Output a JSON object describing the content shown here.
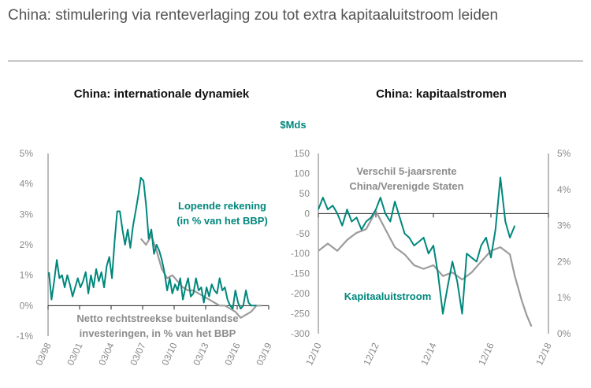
{
  "title": "China: stimulering via renteverlaging zou tot extra kapitaaluitstroom leiden",
  "colors": {
    "teal": "#00877c",
    "grey": "#9b9b9b"
  },
  "chart_data": [
    {
      "type": "line",
      "title": "China: internationale dynamiek",
      "x_ticks": [
        "03/98",
        "03/01",
        "03/04",
        "03/07",
        "03/10",
        "03/13",
        "03/16",
        "03/19"
      ],
      "x_range": [
        1998.17,
        2019.17
      ],
      "y_ticks": [
        "5%",
        "4%",
        "3%",
        "2%",
        "1%",
        "0%",
        "-1%"
      ],
      "ylim": [
        -1,
        5
      ],
      "series": [
        {
          "name": "Lopende rekening (in % van het BBP)",
          "label_lines": [
            "Lopende rekening",
            "(in % van het BBP)"
          ],
          "color": "#00877c",
          "x": [
            1998.25,
            1998.5,
            1998.75,
            1999.0,
            1999.25,
            1999.5,
            1999.75,
            2000.0,
            2000.25,
            2000.5,
            2000.75,
            2001.0,
            2001.25,
            2001.5,
            2001.75,
            2002.0,
            2002.25,
            2002.5,
            2002.75,
            2003.0,
            2003.25,
            2003.5,
            2003.75,
            2004.0,
            2004.25,
            2004.5,
            2004.75,
            2005.0,
            2005.25,
            2005.5,
            2005.75,
            2006.0,
            2006.25,
            2006.5,
            2006.75,
            2007.0,
            2007.25,
            2007.5,
            2007.75,
            2008.0,
            2008.25,
            2008.5,
            2008.75,
            2009.0,
            2009.25,
            2009.5,
            2009.75,
            2010.0,
            2010.25,
            2010.5,
            2010.75,
            2011.0,
            2011.25,
            2011.5,
            2011.75,
            2012.0,
            2012.25,
            2012.5,
            2012.75,
            2013.0,
            2013.25,
            2013.5,
            2013.75,
            2014.0,
            2014.25,
            2014.5,
            2014.75,
            2015.0,
            2015.25,
            2015.5,
            2015.75,
            2016.0,
            2016.25,
            2016.5,
            2016.75,
            2017.0,
            2017.25,
            2017.5,
            2017.75,
            2018.0
          ],
          "y": [
            1.1,
            0.2,
            0.8,
            1.5,
            0.9,
            1.0,
            0.6,
            1.0,
            0.7,
            0.3,
            0.6,
            0.9,
            0.6,
            0.8,
            1.1,
            0.4,
            1.0,
            0.6,
            1.2,
            0.8,
            1.1,
            0.6,
            1.3,
            1.6,
            0.9,
            2.1,
            3.1,
            3.1,
            2.5,
            2.0,
            2.5,
            1.9,
            2.6,
            3.1,
            3.6,
            4.2,
            4.1,
            3.3,
            2.2,
            2.5,
            1.7,
            2.0,
            1.8,
            1.5,
            1.1,
            0.5,
            0.9,
            0.4,
            0.7,
            0.5,
            0.9,
            0.2,
            0.6,
            0.9,
            0.3,
            0.4,
            0.9,
            0.5,
            0.6,
            0.1,
            0.6,
            0.3,
            0.7,
            0.5,
            0.4,
            0.9,
            0.5,
            0.6,
            0.2,
            0.0,
            -0.1,
            0.5,
            0.1,
            -0.1,
            0.0,
            0.5,
            0.1,
            0.0,
            0.0,
            0.0
          ]
        },
        {
          "name": "Netto rechtstreekse buitenlandse investeringen, in % van het BBP",
          "label_lines": [
            "Netto rechtstreekse buitenlandse",
            "investeringen, in % van het BBP"
          ],
          "color": "#9b9b9b",
          "x": [
            2007.0,
            2007.5,
            2008.0,
            2008.5,
            2009.0,
            2009.5,
            2010.0,
            2010.5,
            2011.0,
            2011.5,
            2012.0,
            2012.5,
            2013.0,
            2013.5,
            2014.0,
            2014.5,
            2015.0,
            2015.5,
            2016.0,
            2016.5,
            2017.0,
            2017.5,
            2018.0,
            2018.5
          ],
          "y": [
            2.2,
            2.0,
            2.3,
            1.8,
            1.2,
            0.9,
            1.0,
            0.8,
            0.6,
            0.5,
            0.5,
            0.4,
            0.3,
            0.2,
            0.1,
            0.0,
            0.0,
            -0.1,
            -0.2,
            -0.4,
            -0.3,
            -0.2,
            0.0,
            0.0
          ]
        }
      ]
    },
    {
      "type": "line",
      "title": "China: kapitaalstromen",
      "left_unit": "$Mds",
      "x_ticks": [
        "12/10",
        "12/12",
        "12/14",
        "12/16",
        "12/18"
      ],
      "x_range": [
        2010.92,
        2018.92
      ],
      "y_ticks_left": [
        "150",
        "100",
        "50",
        "0",
        "-50",
        "-100",
        "-150",
        "-200",
        "-250",
        "-300"
      ],
      "ylim_left": [
        -300,
        150
      ],
      "y_ticks_right": [
        "5%",
        "4%",
        "3%",
        "2%",
        "1%",
        "0%"
      ],
      "ylim_right": [
        0,
        5
      ],
      "series": [
        {
          "name": "Kapitaaluitstroom",
          "label_lines": [
            "Kapitaaluitstroom"
          ],
          "axis": "left",
          "color": "#00877c",
          "x": [
            2010.92,
            2011.08,
            2011.25,
            2011.42,
            2011.58,
            2011.75,
            2011.92,
            2012.08,
            2012.25,
            2012.42,
            2012.58,
            2012.75,
            2012.92,
            2013.08,
            2013.25,
            2013.42,
            2013.58,
            2013.75,
            2013.92,
            2014.08,
            2014.25,
            2014.42,
            2014.58,
            2014.75,
            2014.92,
            2015.08,
            2015.25,
            2015.42,
            2015.58,
            2015.75,
            2015.92,
            2016.08,
            2016.25,
            2016.42,
            2016.58,
            2016.75,
            2016.92,
            2017.08,
            2017.25,
            2017.42,
            2017.58,
            2017.75
          ],
          "y": [
            10,
            40,
            10,
            20,
            0,
            -30,
            10,
            -20,
            -10,
            -40,
            -20,
            -10,
            10,
            40,
            0,
            -20,
            30,
            -10,
            -50,
            -60,
            -80,
            -70,
            -60,
            -100,
            -80,
            -150,
            -250,
            -180,
            -120,
            -170,
            -250,
            -100,
            -110,
            -120,
            -80,
            -60,
            -110,
            -40,
            90,
            -20,
            -60,
            -30
          ]
        },
        {
          "name": "Verschil 5-jaarsrente China/Verenigde Staten",
          "label_lines": [
            "Verschil 5-jaarsrente",
            "China/Verenigde Staten"
          ],
          "axis": "right",
          "color": "#9b9b9b",
          "x": [
            2010.92,
            2011.25,
            2011.58,
            2011.92,
            2012.25,
            2012.58,
            2012.92,
            2013.25,
            2013.58,
            2013.92,
            2014.25,
            2014.58,
            2014.92,
            2015.25,
            2015.58,
            2015.92,
            2016.25,
            2016.58,
            2016.92,
            2017.25,
            2017.58,
            2017.75,
            2018.0,
            2018.17,
            2018.33
          ],
          "y": [
            2.3,
            2.5,
            2.3,
            2.6,
            2.8,
            2.9,
            3.4,
            2.9,
            2.4,
            2.2,
            1.9,
            1.8,
            1.9,
            1.6,
            1.7,
            1.5,
            1.7,
            2.0,
            2.3,
            2.4,
            2.2,
            1.6,
            0.9,
            0.5,
            0.2
          ]
        }
      ]
    }
  ]
}
